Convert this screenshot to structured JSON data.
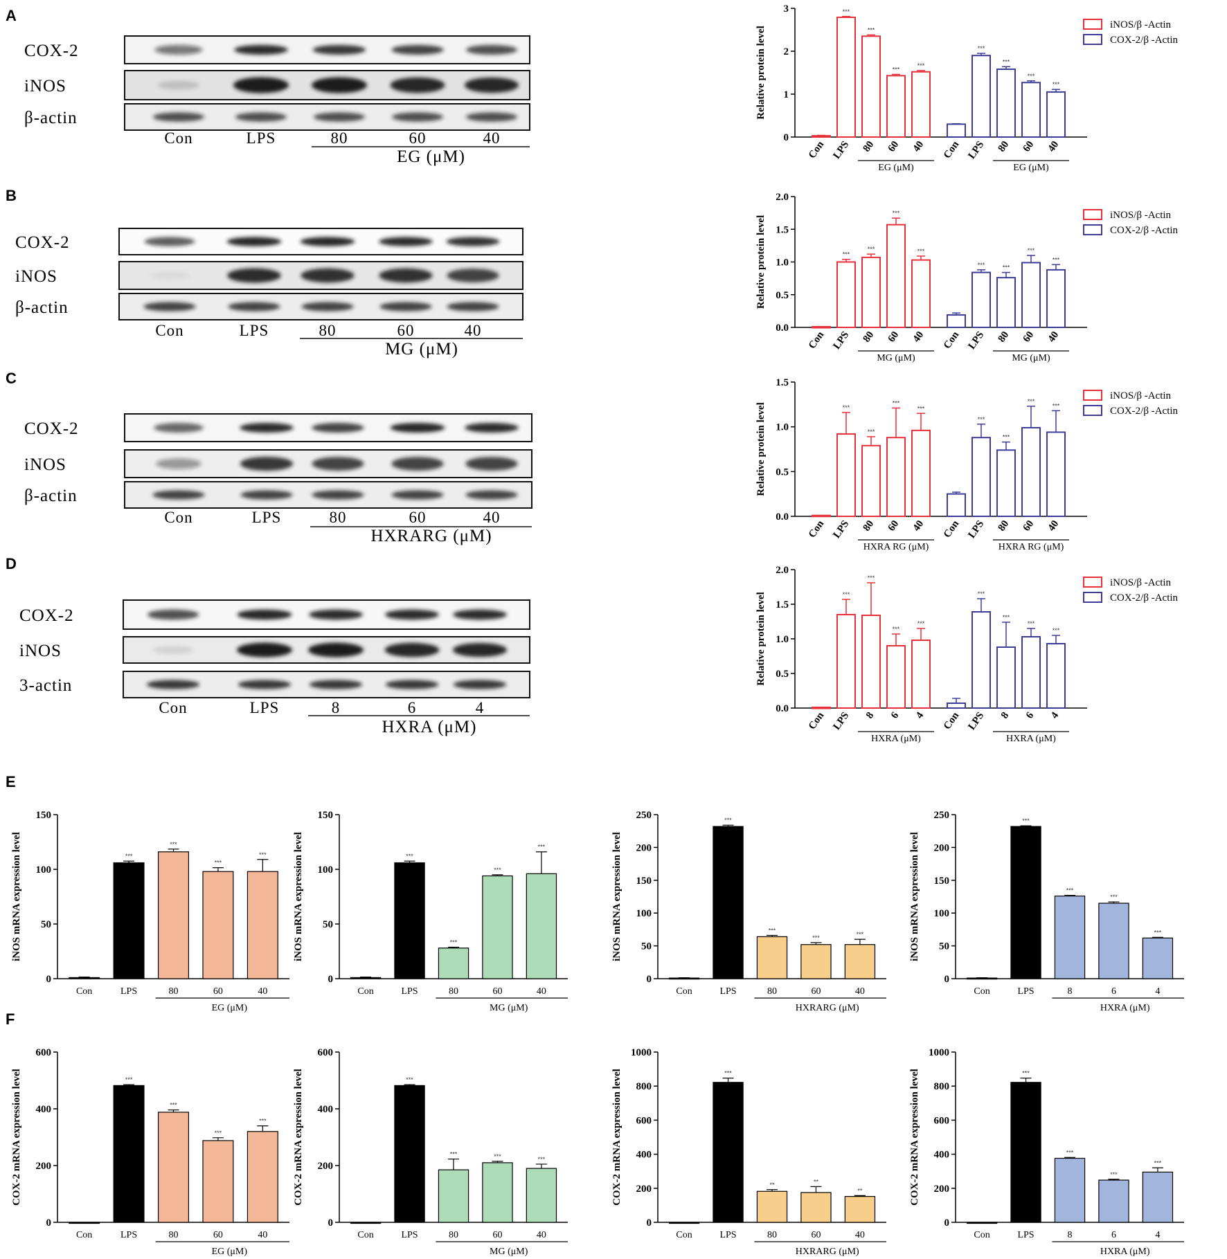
{
  "panel_labels": [
    "A",
    "B",
    "C",
    "D",
    "E",
    "F"
  ],
  "blots": [
    {
      "panel": "A",
      "rows": [
        "COX-2",
        "iNOS",
        "β-actin"
      ],
      "lanes": [
        "Con",
        "LPS",
        "80",
        "60",
        "40"
      ],
      "treatment": "EG (μM)"
    },
    {
      "panel": "B",
      "rows": [
        "COX-2",
        "iNOS",
        "β-actin"
      ],
      "lanes": [
        "Con",
        "LPS",
        "80",
        "60",
        "40"
      ],
      "treatment": "MG (μM)"
    },
    {
      "panel": "C",
      "rows": [
        "COX-2",
        "iNOS",
        "β-actin"
      ],
      "lanes": [
        "Con",
        "LPS",
        "80",
        "60",
        "40"
      ],
      "treatment": "HXRARG (μM)"
    },
    {
      "panel": "D",
      "rows": [
        "COX-2",
        "iNOS",
        "3-actin"
      ],
      "lanes": [
        "Con",
        "LPS",
        "8",
        "6",
        "4"
      ],
      "treatment": "HXRA (μM)"
    }
  ],
  "colors": {
    "iNOS": "#e8303a",
    "COX2": "#3b3c98",
    "black": "#000000",
    "EG": "#f4b899",
    "MG": "#aedbb8",
    "HXRARG": "#f8cf8a",
    "HXRA": "#a2b6dd"
  },
  "chart_data": [
    {
      "id": "A",
      "type": "bar",
      "ylabel": "Relative protein level",
      "ylim": [
        0,
        3
      ],
      "yticks": [
        "0",
        "1",
        "2",
        "3"
      ],
      "legend": [
        "iNOS/β -Actin",
        "COX-2/β -Actin"
      ],
      "legend_position": "top-right",
      "categories": [
        "Con",
        "LPS",
        "80",
        "60",
        "40"
      ],
      "treatment": "EG (μM)",
      "series": [
        {
          "name": "iNOS/β -Actin",
          "values": [
            0.03,
            2.79,
            2.35,
            1.43,
            1.52
          ],
          "errors": [
            0.01,
            0.02,
            0.03,
            0.03,
            0.03
          ],
          "sig": [
            "",
            "***",
            "***",
            "***",
            "***"
          ]
        },
        {
          "name": "COX-2/β -Actin",
          "values": [
            0.3,
            1.9,
            1.58,
            1.27,
            1.05
          ],
          "errors": [
            0.01,
            0.05,
            0.06,
            0.04,
            0.06
          ],
          "sig": [
            "",
            "***",
            "***",
            "***",
            "***"
          ]
        }
      ]
    },
    {
      "id": "B",
      "type": "bar",
      "ylabel": "Relative protein level",
      "ylim": [
        0,
        2
      ],
      "yticks": [
        "0.0",
        "0.5",
        "1.0",
        "1.5",
        "2.0"
      ],
      "legend": [
        "iNOS/β -Actin",
        "COX-2/β -Actin"
      ],
      "legend_position": "top-right",
      "categories": [
        "Con",
        "LPS",
        "80",
        "60",
        "40"
      ],
      "treatment": "MG (μM)",
      "series": [
        {
          "name": "iNOS/β -Actin",
          "values": [
            0.01,
            1.0,
            1.07,
            1.57,
            1.03
          ],
          "errors": [
            0.0,
            0.04,
            0.05,
            0.1,
            0.06
          ],
          "sig": [
            "",
            "***",
            "***",
            "***",
            "***"
          ]
        },
        {
          "name": "COX-2/β -Actin",
          "values": [
            0.19,
            0.84,
            0.76,
            0.99,
            0.88
          ],
          "errors": [
            0.03,
            0.04,
            0.08,
            0.11,
            0.08
          ],
          "sig": [
            "",
            "***",
            "***",
            "***",
            "***"
          ]
        }
      ]
    },
    {
      "id": "C",
      "type": "bar",
      "ylabel": "Relative protein level",
      "ylim": [
        0,
        1.5
      ],
      "yticks": [
        "0.0",
        "0.5",
        "1.0",
        "1.5"
      ],
      "legend": [
        "iNOS/β -Actin",
        "COX-2/β -Actin"
      ],
      "legend_position": "top-right",
      "categories": [
        "Con",
        "LPS",
        "80",
        "60",
        "40"
      ],
      "treatment": "HXRA RG (μM)",
      "series": [
        {
          "name": "iNOS/β -Actin",
          "values": [
            0.01,
            0.92,
            0.79,
            0.88,
            0.96
          ],
          "errors": [
            0.0,
            0.24,
            0.1,
            0.33,
            0.19
          ],
          "sig": [
            "",
            "***",
            "***",
            "***",
            "***"
          ]
        },
        {
          "name": "COX-2/β -Actin",
          "values": [
            0.25,
            0.88,
            0.74,
            0.99,
            0.94
          ],
          "errors": [
            0.02,
            0.15,
            0.09,
            0.24,
            0.24
          ],
          "sig": [
            "",
            "***",
            "***",
            "***",
            "***"
          ]
        }
      ]
    },
    {
      "id": "D",
      "type": "bar",
      "ylabel": "Relative protein level",
      "ylim": [
        0,
        2
      ],
      "yticks": [
        "0.0",
        "0.5",
        "1.0",
        "1.5",
        "2.0"
      ],
      "legend": [
        "iNOS/β -Actin",
        "COX-2/β -Actin"
      ],
      "legend_position": "top-right",
      "categories": [
        "Con",
        "LPS",
        "8",
        "6",
        "4"
      ],
      "treatment": "HXRA  (μM)",
      "series": [
        {
          "name": "iNOS/β -Actin",
          "values": [
            0.01,
            1.35,
            1.34,
            0.9,
            0.98
          ],
          "errors": [
            0.0,
            0.22,
            0.47,
            0.17,
            0.17
          ],
          "sig": [
            "",
            "***",
            "***",
            "***",
            "***"
          ]
        },
        {
          "name": "COX-2/β -Actin",
          "values": [
            0.07,
            1.39,
            0.88,
            1.03,
            0.93
          ],
          "errors": [
            0.07,
            0.19,
            0.36,
            0.12,
            0.12
          ],
          "sig": [
            "",
            "***",
            "***",
            "***",
            "***"
          ]
        }
      ]
    },
    {
      "id": "E1",
      "type": "bar",
      "ylabel": "iNOS mRNA expression level",
      "ylim": [
        0,
        150
      ],
      "yticks": [
        "0",
        "50",
        "100",
        "150"
      ],
      "categories": [
        "Con",
        "LPS",
        "80",
        "60",
        "40"
      ],
      "treatment": "EG (μM)",
      "color": "EG",
      "values": [
        1,
        106,
        116,
        98,
        98
      ],
      "errors": [
        0.5,
        1.5,
        2.5,
        3.5,
        11
      ],
      "sig": [
        "",
        "***",
        "***",
        "***",
        "***"
      ]
    },
    {
      "id": "E2",
      "type": "bar",
      "ylabel": "iNOS mRNA expression level",
      "ylim": [
        0,
        150
      ],
      "yticks": [
        "0",
        "50",
        "100",
        "150"
      ],
      "categories": [
        "Con",
        "LPS",
        "80",
        "60",
        "40"
      ],
      "treatment": "MG (μM)",
      "color": "MG",
      "values": [
        1,
        106,
        28,
        94,
        96
      ],
      "errors": [
        0.5,
        1.5,
        0.8,
        1,
        20
      ],
      "sig": [
        "",
        "***",
        "***",
        "***",
        "***"
      ]
    },
    {
      "id": "E3",
      "type": "bar",
      "ylabel": "iNOS mRNA expression level",
      "ylim": [
        0,
        250
      ],
      "yticks": [
        "0",
        "50",
        "100",
        "150",
        "200",
        "250"
      ],
      "categories": [
        "Con",
        "LPS",
        "80",
        "60",
        "40"
      ],
      "treatment": "HXRARG (μM)",
      "color": "HXRARG",
      "values": [
        1,
        232,
        64,
        52,
        52
      ],
      "errors": [
        0.5,
        2,
        2,
        3,
        8
      ],
      "sig": [
        "",
        "***",
        "***",
        "***",
        "***"
      ]
    },
    {
      "id": "E4",
      "type": "bar",
      "ylabel": "iNOS mRNA expression level",
      "ylim": [
        0,
        250
      ],
      "yticks": [
        "0",
        "50",
        "100",
        "150",
        "200",
        "250"
      ],
      "categories": [
        "Con",
        "LPS",
        "8",
        "6",
        "4"
      ],
      "treatment": "HXRA (μM)",
      "color": "HXRA",
      "values": [
        1,
        232,
        126,
        115,
        62
      ],
      "errors": [
        0.5,
        1,
        1,
        2,
        1
      ],
      "sig": [
        "",
        "***",
        "***",
        "***",
        "***"
      ]
    },
    {
      "id": "F1",
      "type": "bar",
      "ylabel": "COX-2 mRNA expression level",
      "ylim": [
        0,
        600
      ],
      "yticks": [
        "0",
        "200",
        "400",
        "600"
      ],
      "categories": [
        "Con",
        "LPS",
        "80",
        "60",
        "40"
      ],
      "treatment": "EG (μM)",
      "color": "EG",
      "values": [
        0,
        482,
        388,
        288,
        320
      ],
      "errors": [
        0,
        3,
        8,
        10,
        20
      ],
      "sig": [
        "",
        "***",
        "***",
        "***",
        "***"
      ]
    },
    {
      "id": "F2",
      "type": "bar",
      "ylabel": "COX-2 mRNA expression level",
      "ylim": [
        0,
        600
      ],
      "yticks": [
        "0",
        "200",
        "400",
        "600"
      ],
      "categories": [
        "Con",
        "LPS",
        "80",
        "60",
        "40"
      ],
      "treatment": "MG (μM)",
      "color": "MG",
      "values": [
        0,
        482,
        185,
        210,
        190
      ],
      "errors": [
        0,
        3,
        38,
        5,
        15
      ],
      "sig": [
        "",
        "***",
        "***",
        "***",
        "***"
      ]
    },
    {
      "id": "F3",
      "type": "bar",
      "ylabel": "COX-2 mRNA expression level",
      "ylim": [
        0,
        1000
      ],
      "yticks": [
        "0",
        "200",
        "400",
        "600",
        "800",
        "1000"
      ],
      "categories": [
        "Con",
        "LPS",
        "80",
        "60",
        "40"
      ],
      "treatment": "HXRARG (μM)",
      "color": "HXRARG",
      "values": [
        0,
        822,
        182,
        175,
        152
      ],
      "errors": [
        0,
        25,
        10,
        35,
        5
      ],
      "sig": [
        "",
        "***",
        "**",
        "**",
        "**"
      ]
    },
    {
      "id": "F4",
      "type": "bar",
      "ylabel": "COX-2 mRNA expression level",
      "ylim": [
        0,
        1000
      ],
      "yticks": [
        "0",
        "200",
        "400",
        "600",
        "800",
        "1000"
      ],
      "categories": [
        "Con",
        "LPS",
        "8",
        "6",
        "4"
      ],
      "treatment": "HXRA (μM)",
      "color": "HXRA",
      "values": [
        0,
        822,
        376,
        248,
        295
      ],
      "errors": [
        0,
        25,
        5,
        5,
        25
      ],
      "sig": [
        "",
        "***",
        "***",
        "***",
        "***"
      ]
    }
  ]
}
